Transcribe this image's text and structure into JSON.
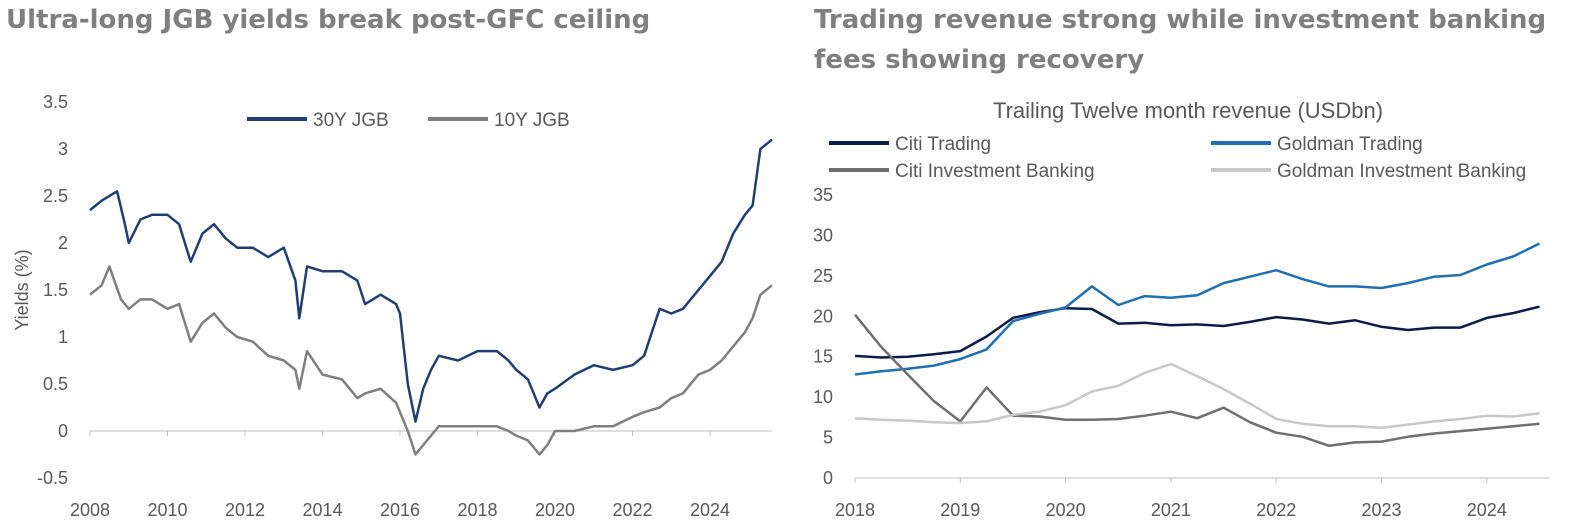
{
  "panels": {
    "left_title": "Ultra-long JGB yields break post-GFC ceiling",
    "right_title": "Trading revenue strong while investment banking fees showing recovery"
  },
  "chart_data": [
    {
      "type": "line",
      "title": "",
      "xlabel": "",
      "ylabel": "Yields (%)",
      "xlim": [
        2008,
        2025.6
      ],
      "ylim": [
        -0.5,
        3.5
      ],
      "x_ticks": [
        "2008",
        "2010",
        "2012",
        "2014",
        "2016",
        "2018",
        "2020",
        "2022",
        "2024"
      ],
      "y_ticks": [
        "3.5",
        "3",
        "2.5",
        "2",
        "1.5",
        "1",
        "0.5",
        "0",
        "-0.5"
      ],
      "legend": "top-center",
      "grid": false,
      "series": [
        {
          "name": "30Y JGB",
          "color": "#1f3f74",
          "x": [
            2008.0,
            2008.3,
            2008.7,
            2008.9,
            2009.0,
            2009.3,
            2009.6,
            2010.0,
            2010.3,
            2010.6,
            2010.9,
            2011.2,
            2011.5,
            2011.8,
            2012.2,
            2012.6,
            2013.0,
            2013.3,
            2013.4,
            2013.6,
            2014.0,
            2014.5,
            2014.9,
            2015.1,
            2015.5,
            2015.9,
            2016.0,
            2016.2,
            2016.4,
            2016.6,
            2016.8,
            2017.0,
            2017.5,
            2018.0,
            2018.5,
            2018.8,
            2019.0,
            2019.3,
            2019.6,
            2019.8,
            2020.0,
            2020.5,
            2021.0,
            2021.5,
            2022.0,
            2022.3,
            2022.7,
            2023.0,
            2023.3,
            2023.7,
            2024.0,
            2024.3,
            2024.6,
            2024.9,
            2025.1,
            2025.3,
            2025.45,
            2025.6
          ],
          "y": [
            2.35,
            2.45,
            2.55,
            2.2,
            2.0,
            2.25,
            2.3,
            2.3,
            2.2,
            1.8,
            2.1,
            2.2,
            2.05,
            1.95,
            1.95,
            1.85,
            1.95,
            1.6,
            1.2,
            1.75,
            1.7,
            1.7,
            1.6,
            1.35,
            1.45,
            1.35,
            1.25,
            0.5,
            0.1,
            0.45,
            0.65,
            0.8,
            0.75,
            0.85,
            0.85,
            0.75,
            0.65,
            0.55,
            0.25,
            0.4,
            0.45,
            0.6,
            0.7,
            0.65,
            0.7,
            0.8,
            1.3,
            1.25,
            1.3,
            1.5,
            1.65,
            1.8,
            2.1,
            2.3,
            2.4,
            3.0,
            3.05,
            3.1
          ]
        },
        {
          "name": "10Y JGB",
          "color": "#7f7f7f",
          "x": [
            2008.0,
            2008.3,
            2008.5,
            2008.8,
            2009.0,
            2009.3,
            2009.6,
            2010.0,
            2010.3,
            2010.6,
            2010.9,
            2011.2,
            2011.5,
            2011.8,
            2012.2,
            2012.6,
            2013.0,
            2013.3,
            2013.4,
            2013.6,
            2014.0,
            2014.5,
            2014.9,
            2015.1,
            2015.5,
            2015.9,
            2016.0,
            2016.2,
            2016.4,
            2016.6,
            2016.8,
            2017.0,
            2017.5,
            2018.0,
            2018.5,
            2018.8,
            2019.0,
            2019.3,
            2019.6,
            2019.8,
            2020.0,
            2020.5,
            2021.0,
            2021.5,
            2022.0,
            2022.3,
            2022.7,
            2023.0,
            2023.3,
            2023.7,
            2024.0,
            2024.3,
            2024.6,
            2024.9,
            2025.1,
            2025.3,
            2025.45,
            2025.6
          ],
          "y": [
            1.45,
            1.55,
            1.75,
            1.4,
            1.3,
            1.4,
            1.4,
            1.3,
            1.35,
            0.95,
            1.15,
            1.25,
            1.1,
            1.0,
            0.95,
            0.8,
            0.75,
            0.65,
            0.45,
            0.85,
            0.6,
            0.55,
            0.35,
            0.4,
            0.45,
            0.3,
            0.2,
            0.0,
            -0.25,
            -0.15,
            -0.05,
            0.05,
            0.05,
            0.05,
            0.05,
            0.0,
            -0.05,
            -0.1,
            -0.25,
            -0.15,
            0.0,
            0.0,
            0.05,
            0.05,
            0.15,
            0.2,
            0.25,
            0.35,
            0.4,
            0.6,
            0.65,
            0.75,
            0.9,
            1.05,
            1.2,
            1.45,
            1.5,
            1.55
          ]
        }
      ]
    },
    {
      "type": "line",
      "title": "Trailing Twelve month revenue (USDbn)",
      "xlabel": "",
      "ylabel": "",
      "xlim": [
        2018,
        2024.6
      ],
      "ylim": [
        0,
        35
      ],
      "x_ticks": [
        "2018",
        "2019",
        "2020",
        "2021",
        "2022",
        "2023",
        "2024"
      ],
      "y_ticks": [
        "35",
        "30",
        "25",
        "20",
        "15",
        "10",
        "5",
        "0"
      ],
      "legend": "top",
      "grid": false,
      "series": [
        {
          "name": "Citi Trading",
          "color": "#0c1c4a",
          "x": [
            2018.0,
            2018.25,
            2018.5,
            2018.75,
            2019.0,
            2019.25,
            2019.5,
            2019.75,
            2020.0,
            2020.25,
            2020.5,
            2020.75,
            2021.0,
            2021.25,
            2021.5,
            2021.75,
            2022.0,
            2022.25,
            2022.5,
            2022.75,
            2023.0,
            2023.25,
            2023.5,
            2023.75,
            2024.0,
            2024.25,
            2024.5
          ],
          "y": [
            15.1,
            14.9,
            15.0,
            15.3,
            15.7,
            17.5,
            19.8,
            20.5,
            21.0,
            20.9,
            19.1,
            19.2,
            18.9,
            19.0,
            18.8,
            19.3,
            19.9,
            19.6,
            19.1,
            19.5,
            18.7,
            18.3,
            18.6,
            18.6,
            19.8,
            20.4,
            21.2
          ]
        },
        {
          "name": "Goldman Trading",
          "color": "#1f6fb4",
          "x": [
            2018.0,
            2018.25,
            2018.5,
            2018.75,
            2019.0,
            2019.25,
            2019.5,
            2019.75,
            2020.0,
            2020.25,
            2020.5,
            2020.75,
            2021.0,
            2021.25,
            2021.5,
            2021.75,
            2022.0,
            2022.25,
            2022.5,
            2022.75,
            2023.0,
            2023.25,
            2023.5,
            2023.75,
            2024.0,
            2024.25,
            2024.5
          ],
          "y": [
            12.8,
            13.2,
            13.5,
            13.9,
            14.7,
            15.9,
            19.4,
            20.3,
            21.1,
            23.7,
            21.4,
            22.5,
            22.3,
            22.6,
            24.1,
            24.9,
            25.7,
            24.6,
            23.7,
            23.7,
            23.5,
            24.1,
            24.9,
            25.1,
            26.4,
            27.4,
            29.0
          ]
        },
        {
          "name": "Citi Investment Banking",
          "color": "#6f6f6f",
          "x": [
            2018.0,
            2018.25,
            2018.5,
            2018.75,
            2019.0,
            2019.25,
            2019.5,
            2019.75,
            2020.0,
            2020.25,
            2020.5,
            2020.75,
            2021.0,
            2021.25,
            2021.5,
            2021.75,
            2022.0,
            2022.25,
            2022.5,
            2022.75,
            2023.0,
            2023.25,
            2023.5,
            2023.75,
            2024.0,
            2024.25,
            2024.5
          ],
          "y": [
            20.2,
            16.2,
            12.8,
            9.5,
            7.0,
            11.2,
            7.7,
            7.6,
            7.2,
            7.2,
            7.3,
            7.7,
            8.2,
            7.4,
            8.7,
            6.9,
            5.6,
            5.1,
            4.0,
            4.4,
            4.5,
            5.1,
            5.5,
            5.8,
            6.1,
            6.4,
            6.7
          ]
        },
        {
          "name": "Goldman Investment Banking",
          "color": "#c8c8c8",
          "x": [
            2018.0,
            2018.25,
            2018.5,
            2018.75,
            2019.0,
            2019.25,
            2019.5,
            2019.75,
            2020.0,
            2020.25,
            2020.5,
            2020.75,
            2021.0,
            2021.25,
            2021.5,
            2021.75,
            2022.0,
            2022.25,
            2022.5,
            2022.75,
            2023.0,
            2023.25,
            2023.5,
            2023.75,
            2024.0,
            2024.25,
            2024.5
          ],
          "y": [
            7.4,
            7.2,
            7.1,
            6.9,
            6.8,
            7.0,
            7.8,
            8.2,
            9.0,
            10.7,
            11.4,
            13.0,
            14.1,
            12.6,
            11.0,
            9.2,
            7.3,
            6.7,
            6.4,
            6.4,
            6.2,
            6.6,
            7.0,
            7.3,
            7.7,
            7.6,
            8.0
          ]
        }
      ]
    }
  ]
}
